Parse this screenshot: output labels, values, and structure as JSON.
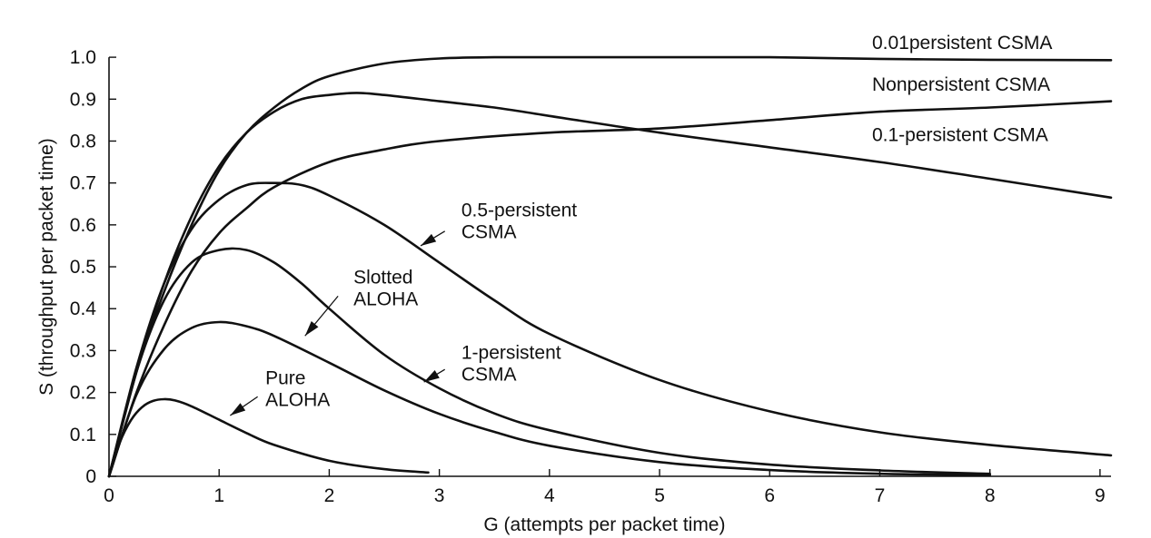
{
  "chart_data": {
    "type": "line",
    "xlabel": "G (attempts per packet time)",
    "ylabel": "S (throughput per packet time)",
    "xlim": [
      0,
      9.1
    ],
    "ylim": [
      0,
      1.05
    ],
    "xticks": [
      "0",
      "1",
      "2",
      "3",
      "4",
      "5",
      "6",
      "7",
      "8",
      "9"
    ],
    "yticks": [
      "0",
      "0.1",
      "0.2",
      "0.3",
      "0.4",
      "0.5",
      "0.6",
      "0.7",
      "0.8",
      "0.9",
      "1.0"
    ],
    "grid": false,
    "series": [
      {
        "name": "0.01persistent CSMA",
        "label_lines": [
          "0.01persistent CSMA"
        ],
        "label_at": [
          6.93,
          1.02
        ],
        "x": [
          0,
          0.25,
          0.5,
          0.75,
          1.0,
          1.25,
          1.5,
          1.75,
          2.0,
          2.5,
          3.0,
          3.5,
          4.0,
          5.0,
          6.0,
          7.0,
          8.0,
          9.1
        ],
        "y": [
          0,
          0.25,
          0.44,
          0.6,
          0.73,
          0.82,
          0.88,
          0.925,
          0.955,
          0.985,
          0.997,
          1.0,
          1.0,
          1.0,
          1.0,
          0.996,
          0.994,
          0.993
        ]
      },
      {
        "name": "Nonpersistent CSMA",
        "label_lines": [
          "Nonpersistent CSMA"
        ],
        "label_at": [
          6.93,
          0.92
        ],
        "x": [
          0,
          0.25,
          0.5,
          0.75,
          1.0,
          1.25,
          1.5,
          2.0,
          2.5,
          3.0,
          4.0,
          5.0,
          6.0,
          7.0,
          8.0,
          9.1
        ],
        "y": [
          0,
          0.2,
          0.36,
          0.49,
          0.58,
          0.64,
          0.69,
          0.75,
          0.78,
          0.8,
          0.82,
          0.83,
          0.85,
          0.87,
          0.88,
          0.895
        ]
      },
      {
        "name": "0.1-persistent CSMA",
        "label_lines": [
          "0.1-persistent CSMA"
        ],
        "label_at": [
          6.93,
          0.8
        ],
        "x": [
          0,
          0.25,
          0.5,
          0.75,
          1.0,
          1.25,
          1.5,
          1.75,
          2.0,
          2.25,
          2.5,
          3.0,
          3.5,
          4.0,
          5.0,
          6.0,
          7.0,
          8.0,
          9.1
        ],
        "y": [
          0,
          0.25,
          0.46,
          0.62,
          0.74,
          0.82,
          0.87,
          0.9,
          0.91,
          0.915,
          0.91,
          0.895,
          0.88,
          0.86,
          0.82,
          0.785,
          0.75,
          0.71,
          0.665
        ]
      },
      {
        "name": "0.5-persistent CSMA",
        "label_lines": [
          "0.5-persistent",
          "CSMA"
        ],
        "label_at": [
          3.2,
          0.62
        ],
        "arrow_from": [
          3.05,
          0.585
        ],
        "arrow_to": [
          2.83,
          0.55
        ],
        "x": [
          0,
          0.25,
          0.5,
          0.75,
          1.0,
          1.25,
          1.5,
          1.75,
          2.0,
          2.5,
          3.0,
          3.5,
          4.0,
          5.0,
          6.0,
          7.0,
          8.0,
          9.1
        ],
        "y": [
          0,
          0.26,
          0.46,
          0.59,
          0.66,
          0.695,
          0.7,
          0.695,
          0.67,
          0.6,
          0.51,
          0.42,
          0.34,
          0.23,
          0.155,
          0.105,
          0.075,
          0.05
        ]
      },
      {
        "name": "1-persistent CSMA",
        "label_lines": [
          "1-persistent",
          "CSMA"
        ],
        "label_at": [
          3.2,
          0.28
        ],
        "arrow_from": [
          3.05,
          0.255
        ],
        "arrow_to": [
          2.86,
          0.225
        ],
        "x": [
          0,
          0.25,
          0.5,
          0.75,
          1.0,
          1.25,
          1.5,
          1.75,
          2.0,
          2.5,
          3.0,
          3.5,
          4.0,
          5.0,
          6.0,
          7.0,
          8.0
        ],
        "y": [
          0,
          0.25,
          0.42,
          0.51,
          0.54,
          0.54,
          0.51,
          0.46,
          0.4,
          0.29,
          0.21,
          0.15,
          0.11,
          0.056,
          0.028,
          0.014,
          0.006
        ]
      },
      {
        "name": "Slotted ALOHA",
        "label_lines": [
          "Slotted",
          "ALOHA"
        ],
        "label_at": [
          2.22,
          0.46
        ],
        "arrow_from": [
          2.08,
          0.43
        ],
        "arrow_to": [
          1.78,
          0.335
        ],
        "x": [
          0,
          0.25,
          0.5,
          0.75,
          1.0,
          1.25,
          1.5,
          2.0,
          2.5,
          3.0,
          3.5,
          4.0,
          5.0,
          6.0,
          7.0,
          8.0
        ],
        "y": [
          0,
          0.195,
          0.303,
          0.354,
          0.368,
          0.358,
          0.335,
          0.271,
          0.205,
          0.149,
          0.106,
          0.073,
          0.034,
          0.015,
          0.006,
          0.003
        ]
      },
      {
        "name": "Pure ALOHA",
        "label_lines": [
          "Pure",
          "ALOHA"
        ],
        "label_at": [
          1.42,
          0.22
        ],
        "arrow_from": [
          1.35,
          0.19
        ],
        "arrow_to": [
          1.1,
          0.145
        ],
        "x": [
          0,
          0.1,
          0.2,
          0.3,
          0.4,
          0.5,
          0.6,
          0.75,
          1.0,
          1.25,
          1.5,
          2.0,
          2.5,
          2.9
        ],
        "y": [
          0,
          0.082,
          0.134,
          0.165,
          0.18,
          0.184,
          0.181,
          0.167,
          0.135,
          0.103,
          0.075,
          0.037,
          0.017,
          0.009
        ]
      }
    ]
  }
}
